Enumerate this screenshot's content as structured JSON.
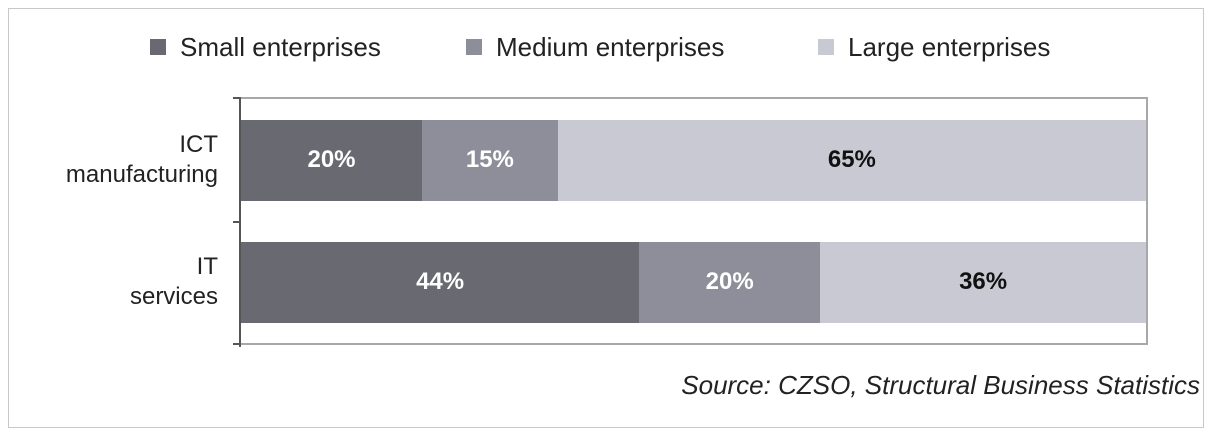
{
  "chart_data": {
    "type": "stacked_bar_horizontal",
    "categories": [
      "ICT\nmanufacturing",
      "IT\nservices"
    ],
    "series": [
      {
        "name": "Small enterprises",
        "color": "#696971",
        "values": [
          20,
          44
        ],
        "value_labels": [
          "20%",
          "44%"
        ]
      },
      {
        "name": "Medium enterprises",
        "color": "#8e8e9a",
        "values": [
          15,
          20
        ],
        "value_labels": [
          "15%",
          "20%"
        ]
      },
      {
        "name": "Large enterprises",
        "color": "#c9c9d3",
        "values": [
          65,
          36
        ],
        "value_labels": [
          "65%",
          "36%"
        ]
      }
    ],
    "xlim": [
      0,
      100
    ],
    "legend": "top",
    "source": "Source: CZSO, Structural Business Statistics"
  }
}
